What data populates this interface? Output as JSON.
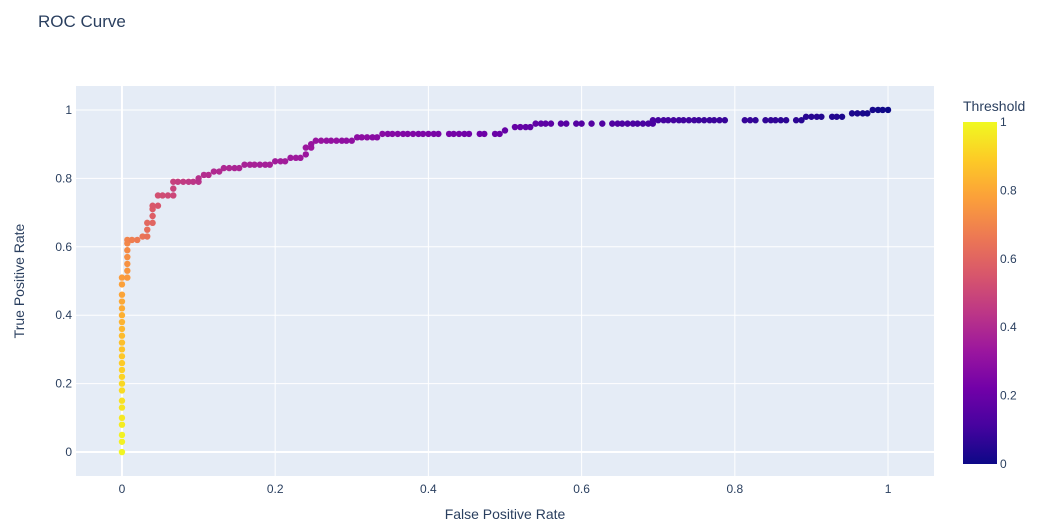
{
  "chart_data": {
    "type": "scatter",
    "title": "ROC Curve",
    "xlabel": "False Positive Rate",
    "ylabel": "True Positive Rate",
    "xlim": [
      -0.06,
      1.06
    ],
    "ylim": [
      -0.07,
      1.07
    ],
    "xticks": [
      0,
      0.2,
      0.4,
      0.6,
      0.8,
      1
    ],
    "xtick_labels": [
      "0",
      "0.2",
      "0.4",
      "0.6",
      "0.8",
      "1"
    ],
    "yticks": [
      0,
      0.2,
      0.4,
      0.6,
      0.8,
      1
    ],
    "ytick_labels": [
      "0",
      "0.2",
      "0.4",
      "0.6",
      "0.8",
      "1"
    ],
    "grid": true,
    "plot_background": "#e5ecf6",
    "colorbar": {
      "title": "Threshold",
      "range": [
        0,
        1
      ],
      "ticks": [
        0,
        0.2,
        0.4,
        0.6,
        0.8,
        1
      ],
      "tick_labels": [
        "0",
        "0.2",
        "0.4",
        "0.6",
        "0.8",
        "1"
      ],
      "colorscale": [
        "#0d0887",
        "#46039f",
        "#7201a8",
        "#9c179e",
        "#bd3786",
        "#d8576b",
        "#ed7953",
        "#fb9f3a",
        "#fdca26",
        "#f0f921"
      ]
    },
    "points": [
      [
        0,
        0.0,
        0.99
      ],
      [
        0,
        0.03,
        0.98
      ],
      [
        0,
        0.05,
        0.98
      ],
      [
        0,
        0.08,
        0.97
      ],
      [
        0,
        0.1,
        0.96
      ],
      [
        0,
        0.13,
        0.95
      ],
      [
        0,
        0.15,
        0.94
      ],
      [
        0,
        0.18,
        0.93
      ],
      [
        0,
        0.2,
        0.92
      ],
      [
        0,
        0.22,
        0.91
      ],
      [
        0,
        0.24,
        0.9
      ],
      [
        0,
        0.26,
        0.89
      ],
      [
        0,
        0.28,
        0.88
      ],
      [
        0,
        0.3,
        0.87
      ],
      [
        0,
        0.32,
        0.86
      ],
      [
        0,
        0.34,
        0.85
      ],
      [
        0,
        0.36,
        0.84
      ],
      [
        0,
        0.38,
        0.83
      ],
      [
        0,
        0.4,
        0.82
      ],
      [
        0,
        0.42,
        0.81
      ],
      [
        0,
        0.44,
        0.8
      ],
      [
        0,
        0.46,
        0.79
      ],
      [
        0,
        0.49,
        0.78
      ],
      [
        0,
        0.51,
        0.77
      ],
      [
        0.007,
        0.51,
        0.76
      ],
      [
        0.007,
        0.53,
        0.75
      ],
      [
        0.007,
        0.55,
        0.74
      ],
      [
        0.007,
        0.57,
        0.73
      ],
      [
        0.007,
        0.59,
        0.72
      ],
      [
        0.007,
        0.61,
        0.71
      ],
      [
        0.007,
        0.62,
        0.7
      ],
      [
        0.013,
        0.62,
        0.68
      ],
      [
        0.02,
        0.62,
        0.67
      ],
      [
        0.027,
        0.63,
        0.65
      ],
      [
        0.033,
        0.63,
        0.64
      ],
      [
        0.033,
        0.65,
        0.63
      ],
      [
        0.033,
        0.67,
        0.61
      ],
      [
        0.04,
        0.67,
        0.6
      ],
      [
        0.04,
        0.69,
        0.58
      ],
      [
        0.04,
        0.71,
        0.57
      ],
      [
        0.04,
        0.72,
        0.56
      ],
      [
        0.047,
        0.72,
        0.55
      ],
      [
        0.047,
        0.75,
        0.53
      ],
      [
        0.053,
        0.75,
        0.52
      ],
      [
        0.06,
        0.75,
        0.51
      ],
      [
        0.067,
        0.75,
        0.5
      ],
      [
        0.067,
        0.77,
        0.49
      ],
      [
        0.067,
        0.79,
        0.48
      ],
      [
        0.073,
        0.79,
        0.47
      ],
      [
        0.08,
        0.79,
        0.46
      ],
      [
        0.087,
        0.79,
        0.45
      ],
      [
        0.093,
        0.79,
        0.44
      ],
      [
        0.1,
        0.79,
        0.43
      ],
      [
        0.1,
        0.8,
        0.42
      ],
      [
        0.107,
        0.81,
        0.41
      ],
      [
        0.113,
        0.81,
        0.41
      ],
      [
        0.12,
        0.82,
        0.4
      ],
      [
        0.127,
        0.82,
        0.4
      ],
      [
        0.133,
        0.83,
        0.39
      ],
      [
        0.14,
        0.83,
        0.39
      ],
      [
        0.147,
        0.83,
        0.38
      ],
      [
        0.153,
        0.83,
        0.38
      ],
      [
        0.16,
        0.84,
        0.37
      ],
      [
        0.167,
        0.84,
        0.37
      ],
      [
        0.173,
        0.84,
        0.37
      ],
      [
        0.18,
        0.84,
        0.36
      ],
      [
        0.187,
        0.84,
        0.36
      ],
      [
        0.193,
        0.84,
        0.36
      ],
      [
        0.2,
        0.85,
        0.35
      ],
      [
        0.207,
        0.85,
        0.35
      ],
      [
        0.213,
        0.85,
        0.35
      ],
      [
        0.22,
        0.86,
        0.34
      ],
      [
        0.227,
        0.86,
        0.34
      ],
      [
        0.233,
        0.86,
        0.34
      ],
      [
        0.24,
        0.87,
        0.33
      ],
      [
        0.24,
        0.89,
        0.33
      ],
      [
        0.247,
        0.89,
        0.33
      ],
      [
        0.247,
        0.9,
        0.32
      ],
      [
        0.253,
        0.91,
        0.32
      ],
      [
        0.26,
        0.91,
        0.32
      ],
      [
        0.267,
        0.91,
        0.31
      ],
      [
        0.273,
        0.91,
        0.31
      ],
      [
        0.28,
        0.91,
        0.31
      ],
      [
        0.287,
        0.91,
        0.3
      ],
      [
        0.293,
        0.91,
        0.3
      ],
      [
        0.3,
        0.91,
        0.3
      ],
      [
        0.307,
        0.92,
        0.29
      ],
      [
        0.313,
        0.92,
        0.29
      ],
      [
        0.32,
        0.92,
        0.29
      ],
      [
        0.327,
        0.92,
        0.28
      ],
      [
        0.333,
        0.92,
        0.28
      ],
      [
        0.34,
        0.93,
        0.28
      ],
      [
        0.347,
        0.93,
        0.27
      ],
      [
        0.353,
        0.93,
        0.27
      ],
      [
        0.36,
        0.93,
        0.27
      ],
      [
        0.367,
        0.93,
        0.26
      ],
      [
        0.373,
        0.93,
        0.26
      ],
      [
        0.38,
        0.93,
        0.26
      ],
      [
        0.387,
        0.93,
        0.25
      ],
      [
        0.393,
        0.93,
        0.25
      ],
      [
        0.4,
        0.93,
        0.25
      ],
      [
        0.407,
        0.93,
        0.24
      ],
      [
        0.413,
        0.93,
        0.24
      ],
      [
        0.427,
        0.93,
        0.23
      ],
      [
        0.433,
        0.93,
        0.23
      ],
      [
        0.44,
        0.93,
        0.23
      ],
      [
        0.447,
        0.93,
        0.22
      ],
      [
        0.453,
        0.93,
        0.22
      ],
      [
        0.467,
        0.93,
        0.21
      ],
      [
        0.473,
        0.93,
        0.21
      ],
      [
        0.487,
        0.93,
        0.2
      ],
      [
        0.493,
        0.93,
        0.2
      ],
      [
        0.5,
        0.94,
        0.19
      ],
      [
        0.513,
        0.95,
        0.19
      ],
      [
        0.52,
        0.95,
        0.19
      ],
      [
        0.527,
        0.95,
        0.18
      ],
      [
        0.533,
        0.95,
        0.18
      ],
      [
        0.54,
        0.96,
        0.18
      ],
      [
        0.547,
        0.96,
        0.17
      ],
      [
        0.553,
        0.96,
        0.17
      ],
      [
        0.56,
        0.96,
        0.17
      ],
      [
        0.573,
        0.96,
        0.16
      ],
      [
        0.58,
        0.96,
        0.16
      ],
      [
        0.593,
        0.96,
        0.15
      ],
      [
        0.6,
        0.96,
        0.15
      ],
      [
        0.613,
        0.96,
        0.15
      ],
      [
        0.627,
        0.96,
        0.14
      ],
      [
        0.64,
        0.96,
        0.14
      ],
      [
        0.647,
        0.96,
        0.14
      ],
      [
        0.653,
        0.96,
        0.13
      ],
      [
        0.66,
        0.96,
        0.13
      ],
      [
        0.667,
        0.96,
        0.13
      ],
      [
        0.673,
        0.96,
        0.12
      ],
      [
        0.68,
        0.96,
        0.12
      ],
      [
        0.687,
        0.96,
        0.12
      ],
      [
        0.693,
        0.96,
        0.12
      ],
      [
        0.693,
        0.97,
        0.12
      ],
      [
        0.7,
        0.97,
        0.11
      ],
      [
        0.707,
        0.97,
        0.11
      ],
      [
        0.713,
        0.97,
        0.11
      ],
      [
        0.72,
        0.97,
        0.11
      ],
      [
        0.727,
        0.97,
        0.1
      ],
      [
        0.733,
        0.97,
        0.1
      ],
      [
        0.74,
        0.97,
        0.1
      ],
      [
        0.747,
        0.97,
        0.1
      ],
      [
        0.753,
        0.97,
        0.09
      ],
      [
        0.76,
        0.97,
        0.09
      ],
      [
        0.767,
        0.97,
        0.09
      ],
      [
        0.773,
        0.97,
        0.09
      ],
      [
        0.78,
        0.97,
        0.09
      ],
      [
        0.787,
        0.97,
        0.08
      ],
      [
        0.813,
        0.97,
        0.08
      ],
      [
        0.82,
        0.97,
        0.08
      ],
      [
        0.827,
        0.97,
        0.07
      ],
      [
        0.84,
        0.97,
        0.07
      ],
      [
        0.847,
        0.97,
        0.07
      ],
      [
        0.853,
        0.97,
        0.07
      ],
      [
        0.86,
        0.97,
        0.06
      ],
      [
        0.867,
        0.97,
        0.06
      ],
      [
        0.88,
        0.97,
        0.06
      ],
      [
        0.887,
        0.97,
        0.05
      ],
      [
        0.893,
        0.98,
        0.05
      ],
      [
        0.9,
        0.98,
        0.05
      ],
      [
        0.907,
        0.98,
        0.05
      ],
      [
        0.913,
        0.98,
        0.04
      ],
      [
        0.927,
        0.98,
        0.04
      ],
      [
        0.933,
        0.98,
        0.04
      ],
      [
        0.94,
        0.98,
        0.03
      ],
      [
        0.953,
        0.99,
        0.03
      ],
      [
        0.96,
        0.99,
        0.03
      ],
      [
        0.967,
        0.99,
        0.02
      ],
      [
        0.973,
        0.99,
        0.02
      ],
      [
        0.98,
        1.0,
        0.02
      ],
      [
        0.987,
        1.0,
        0.01
      ],
      [
        0.993,
        1.0,
        0.01
      ],
      [
        1.0,
        1.0,
        0.0
      ]
    ]
  }
}
